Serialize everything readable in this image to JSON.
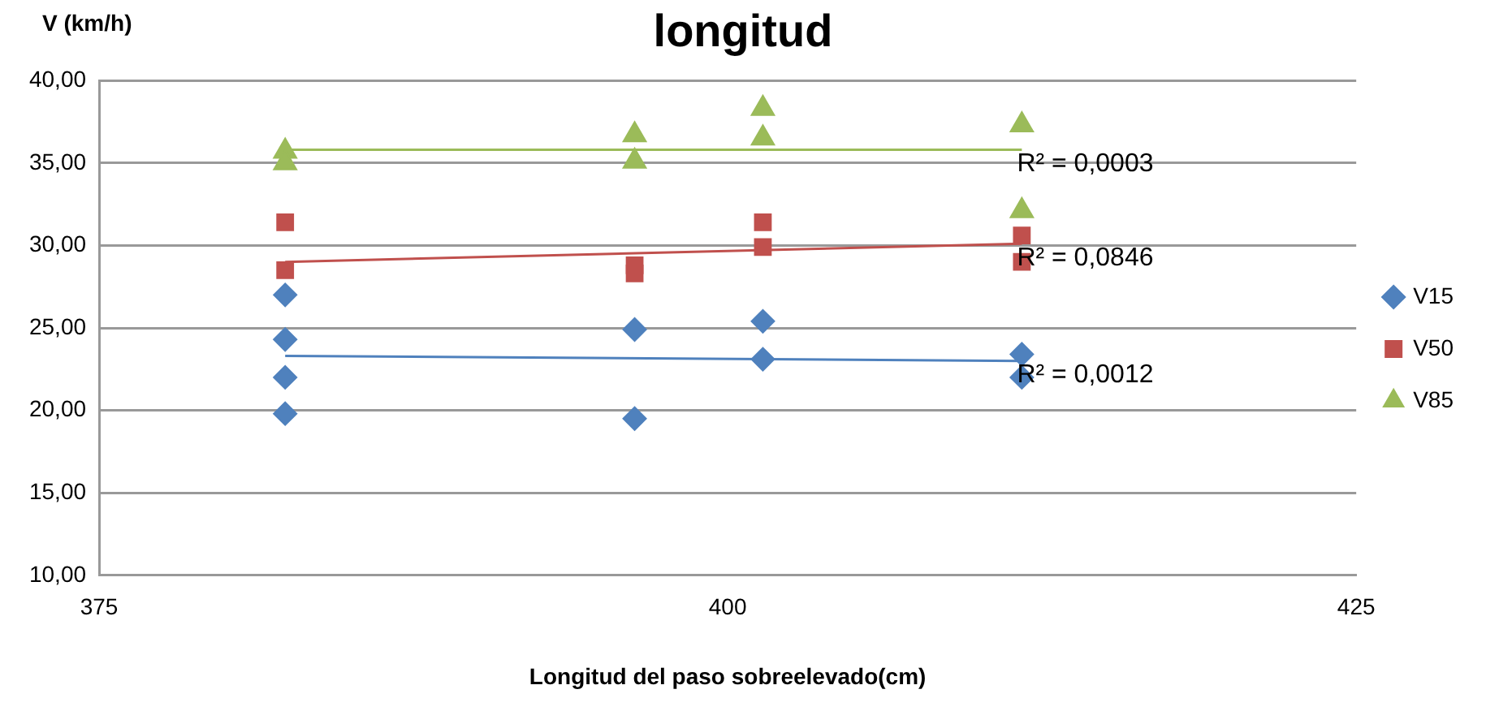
{
  "chart_data": {
    "type": "scatter",
    "title": "longitud",
    "xlabel": "Longitud del paso sobreelevado(cm)",
    "ylabel": "V (km/h)",
    "xlim": [
      375,
      425
    ],
    "xticks": [
      375,
      400,
      425
    ],
    "ylim": [
      10,
      40
    ],
    "yticks": [
      {
        "value": 10,
        "label": "10,00"
      },
      {
        "value": 15,
        "label": "15,00"
      },
      {
        "value": 20,
        "label": "20,00"
      },
      {
        "value": 25,
        "label": "25,00"
      },
      {
        "value": 30,
        "label": "30,00"
      },
      {
        "value": 35,
        "label": "35,00"
      },
      {
        "value": 40,
        "label": "40,00"
      }
    ],
    "grid": "y",
    "legend": "right",
    "series": [
      {
        "name": "V15",
        "color": "#4f81bd",
        "marker": "diamond",
        "x": [
          382.4,
          382.4,
          382.4,
          382.4,
          396.3,
          396.3,
          401.4,
          401.4,
          411.7,
          411.7
        ],
        "values": [
          27.0,
          24.3,
          22.0,
          19.8,
          24.9,
          19.5,
          25.4,
          23.1,
          23.4,
          22.0
        ]
      },
      {
        "name": "V50",
        "color": "#c0504d",
        "marker": "square",
        "x": [
          382.4,
          382.4,
          396.3,
          396.3,
          401.4,
          401.4,
          411.7,
          411.7
        ],
        "values": [
          31.4,
          28.5,
          28.8,
          28.3,
          31.4,
          29.9,
          30.6,
          29.0
        ]
      },
      {
        "name": "V85",
        "color": "#9bbb59",
        "marker": "triangle",
        "x": [
          382.4,
          382.4,
          396.3,
          396.3,
          401.4,
          401.4,
          411.7,
          411.7
        ],
        "values": [
          35.7,
          35.0,
          36.7,
          35.1,
          38.3,
          36.5,
          37.3,
          32.1
        ]
      },
      {
        "type": "line",
        "color": "#9bbb59",
        "marker": "none",
        "x": [
          382.4,
          411.7
        ],
        "values": [
          35.8,
          35.8
        ]
      },
      {
        "type": "line",
        "color": "#c0504d",
        "marker": "none",
        "x": [
          382.4,
          411.7
        ],
        "values": [
          29.0,
          30.1
        ]
      },
      {
        "type": "line",
        "color": "#4f81bd",
        "marker": "none",
        "x": [
          382.4,
          411.7
        ],
        "values": [
          23.3,
          23.0
        ]
      }
    ],
    "annotations": [
      "R² = 0,0003",
      "R² = 0,0846",
      "R² = 0,0012"
    ]
  }
}
